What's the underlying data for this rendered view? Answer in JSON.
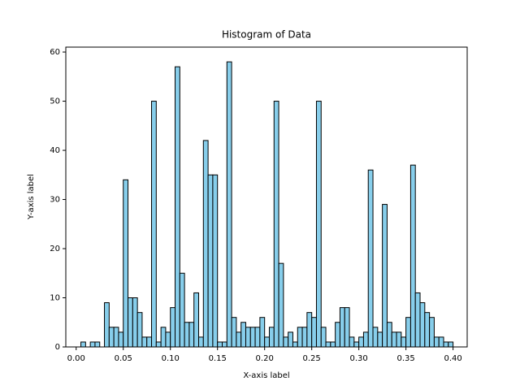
{
  "chart_data": {
    "type": "histogram",
    "title": "Histogram of Data",
    "x_label": "X-axis label",
    "y_label": "Y-axis label",
    "color": "#87ceeb",
    "edgecolor": "#000000",
    "bins": [
      0.005,
      0.01,
      0.015,
      0.02,
      0.025,
      0.03,
      0.035,
      0.04,
      0.045,
      0.05,
      0.055,
      0.06,
      0.065,
      0.07,
      0.075,
      0.08,
      0.085,
      0.09,
      0.095,
      0.1,
      0.105,
      0.11,
      0.115,
      0.12,
      0.125,
      0.13,
      0.135,
      0.14,
      0.145,
      0.15,
      0.155,
      0.16,
      0.165,
      0.17,
      0.175,
      0.18,
      0.185,
      0.19,
      0.195,
      0.2,
      0.205,
      0.21,
      0.215,
      0.22,
      0.225,
      0.23,
      0.235,
      0.24,
      0.245,
      0.25,
      0.255,
      0.26,
      0.265,
      0.27,
      0.275,
      0.28,
      0.285,
      0.29,
      0.295,
      0.3,
      0.305,
      0.31,
      0.315,
      0.32,
      0.325,
      0.33,
      0.335,
      0.34,
      0.345,
      0.35,
      0.355,
      0.36,
      0.365,
      0.37,
      0.375,
      0.38,
      0.385,
      0.39,
      0.395,
      0.4
    ],
    "counts": [
      1,
      0,
      1,
      1,
      0,
      9,
      4,
      4,
      3,
      34,
      10,
      10,
      7,
      2,
      2,
      50,
      1,
      4,
      3,
      8,
      57,
      15,
      5,
      5,
      11,
      2,
      42,
      35,
      35,
      1,
      1,
      58,
      6,
      3,
      5,
      4,
      4,
      4,
      6,
      2,
      4,
      50,
      17,
      2,
      3,
      1,
      4,
      4,
      7,
      6,
      50,
      4,
      1,
      1,
      5,
      8,
      8,
      2,
      1,
      2,
      3,
      36,
      4,
      3,
      29,
      5,
      3,
      3,
      2,
      6,
      37,
      11,
      9,
      7,
      6,
      2,
      2,
      1,
      1
    ],
    "xlim": [
      -0.011,
      0.415
    ],
    "ylim": [
      0,
      61
    ],
    "xticks": [
      {
        "value": 0,
        "label": "0.00"
      },
      {
        "value": 0.05,
        "label": "0.05"
      },
      {
        "value": 0.1,
        "label": "0.10"
      },
      {
        "value": 0.15,
        "label": "0.15"
      },
      {
        "value": 0.2,
        "label": "0.20"
      },
      {
        "value": 0.25,
        "label": "0.25"
      },
      {
        "value": 0.3,
        "label": "0.30"
      },
      {
        "value": 0.35,
        "label": "0.35"
      },
      {
        "value": 0.4,
        "label": "0.40"
      }
    ],
    "yticks": [
      0,
      10,
      20,
      30,
      40,
      50,
      60
    ]
  }
}
